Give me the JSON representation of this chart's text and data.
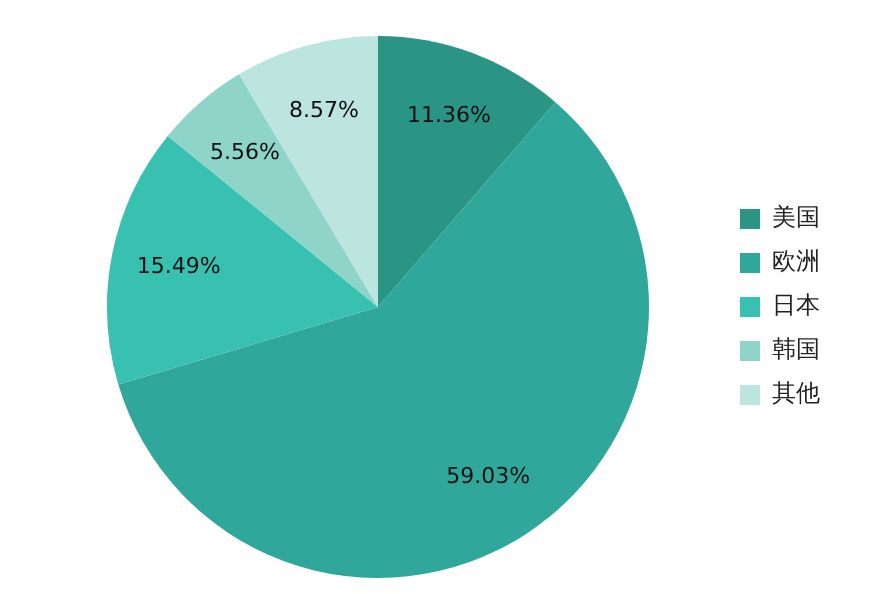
{
  "chart_data": {
    "type": "pie",
    "categories": [
      "美国",
      "欧洲",
      "日本",
      "韩国",
      "其他"
    ],
    "values": [
      11.36,
      59.03,
      15.49,
      5.56,
      8.57
    ],
    "colors": [
      "#2a9485",
      "#2fa89b",
      "#38c0b1",
      "#8ed4c9",
      "#bde5df"
    ],
    "value_labels": [
      "11.36%",
      "59.03%",
      "15.49%",
      "5.56%",
      "8.57%"
    ],
    "legend": "right"
  }
}
